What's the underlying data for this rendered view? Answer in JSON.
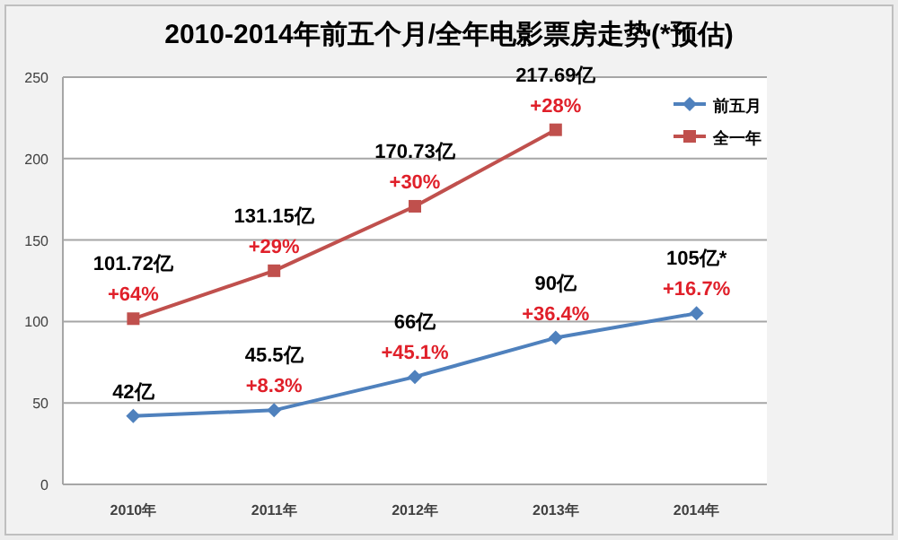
{
  "chart_data": {
    "type": "line",
    "title": "2010-2014年前五个月/全年电影票房走势(*预估)",
    "categories": [
      "2010年",
      "2011年",
      "2012年",
      "2013年",
      "2014年"
    ],
    "series": [
      {
        "name": "前五月",
        "color": "#4f81bd",
        "marker": "diamond",
        "values": [
          42,
          45.5,
          66,
          90,
          105
        ],
        "value_labels": [
          "42亿",
          "45.5亿",
          "66亿",
          "90亿",
          "105亿*"
        ]
      },
      {
        "name": "全一年",
        "color": "#c0504d",
        "marker": "square",
        "values": [
          101.72,
          131.15,
          170.73,
          217.69,
          null
        ],
        "value_labels": [
          "101.72亿",
          "131.15亿",
          "170.73亿",
          "217.69亿",
          null
        ]
      }
    ],
    "annotations": [
      {
        "text": "+8.3%",
        "x": "2011年",
        "y": 45.5
      },
      {
        "text": "+45.1%",
        "x": "2012年",
        "y": 66
      },
      {
        "text": "+36.4%",
        "x": "2013年",
        "y": 90
      },
      {
        "text": "+16.7%",
        "x": "2014年",
        "y": 105
      },
      {
        "text": "+64%",
        "x": "2010年",
        "y": 101.72
      },
      {
        "text": "+29%",
        "x": "2011年",
        "y": 131.15
      },
      {
        "text": "+30%",
        "x": "2012年",
        "y": 170.73
      },
      {
        "text": "+28%",
        "x": "2013年",
        "y": 217.69
      }
    ],
    "ylim": [
      0,
      250
    ],
    "yticks": [
      0,
      50,
      100,
      150,
      200,
      250
    ],
    "grid": "y",
    "legend": "top right"
  }
}
